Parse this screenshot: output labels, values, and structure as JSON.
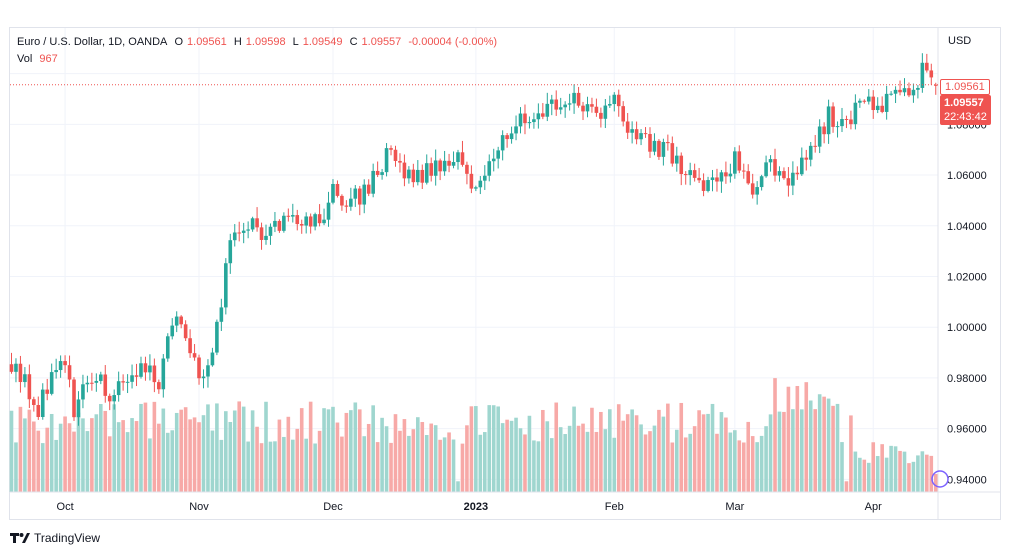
{
  "legend": {
    "symbol": "Euro / U.S. Dollar, 1D, OANDA",
    "open_label": "O",
    "open": "1.09561",
    "high_label": "H",
    "high": "1.09598",
    "low_label": "L",
    "low": "1.09549",
    "close_label": "C",
    "close": "1.09557",
    "change": "-0.00004 (-0.00%)",
    "vol_label": "Vol",
    "vol": "967"
  },
  "currency": "USD",
  "price_tags": {
    "open_price": "1.09561",
    "last_price": "1.09557",
    "countdown": "22:43:42"
  },
  "footer": {
    "brand": "TradingView"
  },
  "colors": {
    "up": "#26a69a",
    "down": "#ef5350",
    "up_vol": "#9fd6cf",
    "down_vol": "#f7a9a7",
    "grid": "#f0f3fa"
  },
  "chart_data": {
    "type": "candlestick",
    "ylim": [
      0.935,
      1.118
    ],
    "yticks": [
      "0.94000",
      "0.96000",
      "0.98000",
      "1.00000",
      "1.02000",
      "1.04000",
      "1.06000",
      "1.08000"
    ],
    "ytick_values": [
      0.94,
      0.96,
      0.98,
      1.0,
      1.02,
      1.04,
      1.06,
      1.08
    ],
    "xticks": [
      "Oct",
      "Nov",
      "Dec",
      "2023",
      "Feb",
      "Mar",
      "Apr"
    ],
    "xtick_bar_index": [
      12,
      42,
      72,
      104,
      135,
      162,
      193
    ],
    "grid": true,
    "last_price_line": 1.0956,
    "close_path_anchors": [
      [
        0,
        0.986
      ],
      [
        6,
        0.968
      ],
      [
        9,
        0.98
      ],
      [
        12,
        0.985
      ],
      [
        14,
        0.965
      ],
      [
        18,
        0.982
      ],
      [
        22,
        0.972
      ],
      [
        27,
        0.984
      ],
      [
        33,
        0.979
      ],
      [
        37,
        1.006
      ],
      [
        40,
        0.992
      ],
      [
        42,
        0.977
      ],
      [
        46,
        1.0
      ],
      [
        49,
        1.032
      ],
      [
        52,
        1.042
      ],
      [
        57,
        1.035
      ],
      [
        62,
        1.044
      ],
      [
        67,
        1.038
      ],
      [
        72,
        1.052
      ],
      [
        75,
        1.048
      ],
      [
        80,
        1.056
      ],
      [
        84,
        1.068
      ],
      [
        88,
        1.06
      ],
      [
        92,
        1.061
      ],
      [
        96,
        1.065
      ],
      [
        101,
        1.065
      ],
      [
        104,
        1.055
      ],
      [
        107,
        1.067
      ],
      [
        111,
        1.076
      ],
      [
        115,
        1.083
      ],
      [
        119,
        1.084
      ],
      [
        124,
        1.088
      ],
      [
        129,
        1.088
      ],
      [
        133,
        1.085
      ],
      [
        135,
        1.096
      ],
      [
        137,
        1.08
      ],
      [
        140,
        1.074
      ],
      [
        146,
        1.071
      ],
      [
        151,
        1.063
      ],
      [
        156,
        1.056
      ],
      [
        162,
        1.065
      ],
      [
        165,
        1.054
      ],
      [
        170,
        1.063
      ],
      [
        175,
        1.058
      ],
      [
        179,
        1.07
      ],
      [
        183,
        1.084
      ],
      [
        186,
        1.081
      ],
      [
        189,
        1.085
      ],
      [
        193,
        1.088
      ],
      [
        197,
        1.089
      ],
      [
        201,
        1.092
      ],
      [
        204,
        1.1
      ],
      [
        206,
        1.096
      ]
    ],
    "volume_ylim": [
      0,
      60000
    ],
    "last_volume": 967
  }
}
